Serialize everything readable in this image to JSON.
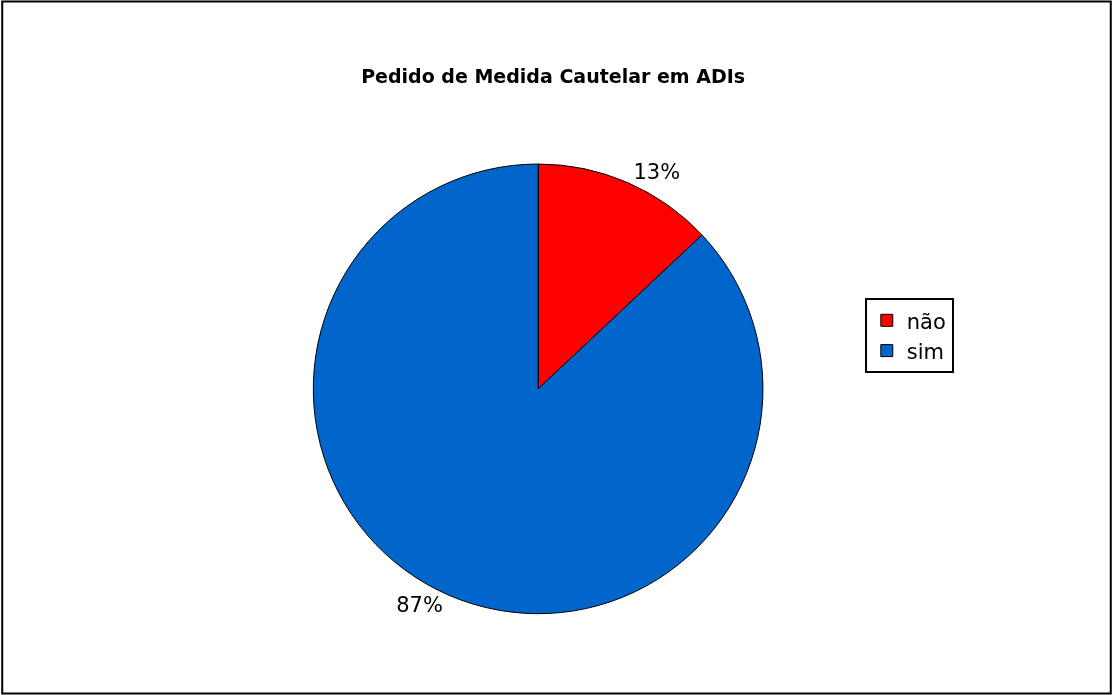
{
  "chart_data": {
    "type": "pie",
    "title": "Pedido de Medida Cautelar em ADIs",
    "categories": [
      "não",
      "sim"
    ],
    "values": [
      13,
      87
    ],
    "colors": [
      "#ff0000",
      "#0066cc"
    ],
    "value_labels": [
      "13%",
      "87%"
    ],
    "legend": "right"
  }
}
